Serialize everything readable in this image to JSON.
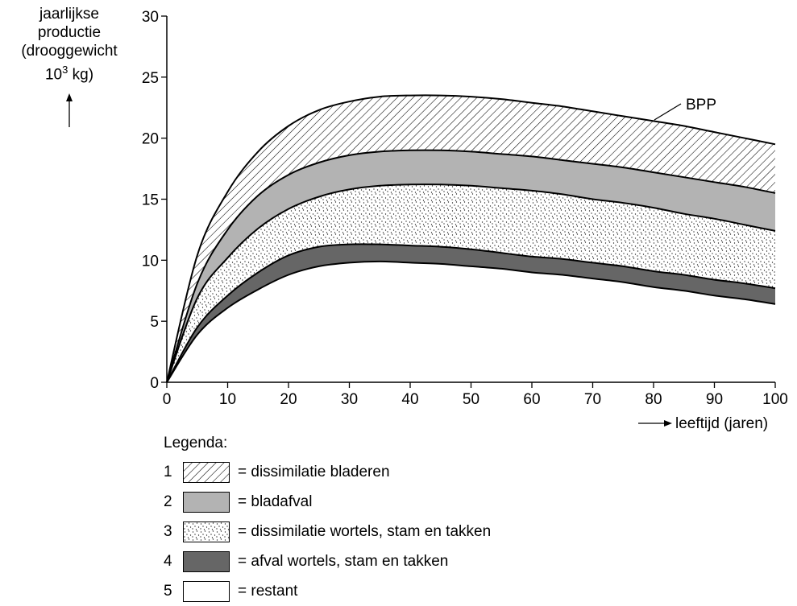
{
  "y_label": {
    "line1": "jaarlijkse",
    "line2": "productie",
    "line3": "(drooggewicht",
    "line4_prefix": "10",
    "line4_sup": "3",
    "line4_suffix": " kg)"
  },
  "x_label": "leeftijd (jaren)",
  "bpp_label": "BPP",
  "legend_title": "Legenda:",
  "legend": [
    {
      "num": "1",
      "text": "= dissimilatie bladeren",
      "fill": "hatch"
    },
    {
      "num": "2",
      "text": "= bladafval",
      "fill": "#b3b3b3"
    },
    {
      "num": "3",
      "text": "= dissimilatie wortels, stam en takken",
      "fill": "dots"
    },
    {
      "num": "4",
      "text": "= afval wortels, stam en takken",
      "fill": "#666666"
    },
    {
      "num": "5",
      "text": "= restant",
      "fill": "#ffffff"
    }
  ],
  "chart_data": {
    "type": "area",
    "x": [
      0,
      5,
      10,
      15,
      20,
      25,
      30,
      35,
      40,
      45,
      50,
      55,
      60,
      65,
      70,
      75,
      80,
      85,
      90,
      95,
      100
    ],
    "xlim": [
      0,
      100
    ],
    "ylim": [
      0,
      30
    ],
    "x_ticks": [
      0,
      10,
      20,
      30,
      40,
      50,
      60,
      70,
      80,
      90,
      100
    ],
    "y_ticks": [
      0,
      5,
      10,
      15,
      20,
      25,
      30
    ],
    "curves": [
      {
        "name": "restant",
        "values": [
          0,
          3.9,
          6.1,
          7.6,
          8.8,
          9.5,
          9.8,
          9.9,
          9.8,
          9.7,
          9.5,
          9.3,
          9.0,
          8.8,
          8.5,
          8.2,
          7.8,
          7.5,
          7.1,
          6.8,
          6.4
        ]
      },
      {
        "name": "afval wortels, stam en takken",
        "values": [
          0,
          4.5,
          7.1,
          9.0,
          10.4,
          11.1,
          11.3,
          11.3,
          11.2,
          11.1,
          10.9,
          10.6,
          10.3,
          10.1,
          9.8,
          9.5,
          9.1,
          8.8,
          8.4,
          8.1,
          7.7
        ]
      },
      {
        "name": "dissimilatie wortels, stam en takken",
        "values": [
          0,
          6.9,
          10.2,
          12.6,
          14.2,
          15.2,
          15.8,
          16.1,
          16.2,
          16.2,
          16.1,
          15.9,
          15.7,
          15.4,
          15.0,
          14.7,
          14.3,
          13.8,
          13.4,
          12.9,
          12.4
        ]
      },
      {
        "name": "bladafval",
        "values": [
          0,
          8.1,
          12.5,
          15.3,
          17.0,
          18.0,
          18.6,
          18.9,
          19.0,
          19.0,
          18.9,
          18.7,
          18.5,
          18.2,
          17.9,
          17.6,
          17.2,
          16.8,
          16.4,
          16.0,
          15.5
        ]
      },
      {
        "name": "BPP",
        "values": [
          0,
          10.4,
          15.6,
          18.9,
          21.0,
          22.3,
          23.0,
          23.4,
          23.5,
          23.5,
          23.4,
          23.2,
          22.9,
          22.6,
          22.2,
          21.8,
          21.4,
          21.0,
          20.5,
          20.0,
          19.5
        ]
      }
    ]
  }
}
